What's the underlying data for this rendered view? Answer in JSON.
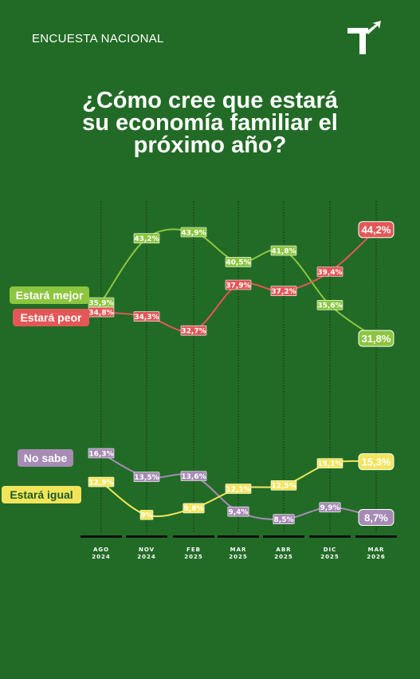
{
  "header": {
    "label": "ENCUESTA NACIONAL"
  },
  "title_lines": [
    "¿Cómo cree que estará",
    "su economía familiar el",
    "próximo año?"
  ],
  "chart_data": {
    "type": "line",
    "x": [
      "AGO 2024",
      "NOV 2024",
      "FEB 2025",
      "MAR 2025",
      "ABR 2025",
      "DIC 2025",
      "MAR 2026"
    ],
    "x_ticks": [
      [
        "AGO",
        "2024"
      ],
      [
        "NOV",
        "2024"
      ],
      [
        "FEB",
        "2025"
      ],
      [
        "MAR",
        "2025"
      ],
      [
        "ABR",
        "2025"
      ],
      [
        "DIC",
        "2025"
      ],
      [
        "MAR",
        "2026"
      ]
    ],
    "series": [
      {
        "name": "Estará mejor",
        "color": "#8cc63f",
        "values": [
          35.9,
          43.2,
          43.9,
          40.5,
          41.8,
          35.6,
          31.8
        ],
        "labels": [
          "35,9%",
          "43,2%",
          "43,9%",
          "40,5%",
          "41,8%",
          "35,6%",
          "31,8%"
        ]
      },
      {
        "name": "Estará peor",
        "color": "#e45757",
        "values": [
          34.8,
          34.3,
          32.7,
          37.9,
          37.2,
          39.4,
          44.2
        ],
        "labels": [
          "34,8%",
          "34,3%",
          "32,7%",
          "37,9%",
          "37,2%",
          "39,4%",
          "44,2%"
        ]
      },
      {
        "name": "No sabe",
        "color": "#a78bb5",
        "values": [
          16.3,
          13.5,
          13.6,
          9.4,
          8.5,
          9.9,
          8.7
        ],
        "labels": [
          "16,3%",
          "13,5%",
          "13,6%",
          "9,4%",
          "8,5%",
          "9,9%",
          "8,7%"
        ]
      },
      {
        "name": "Estará igual",
        "color": "#f2e55c",
        "values": [
          12.9,
          9.0,
          9.8,
          12.1,
          12.5,
          15.1,
          15.3
        ],
        "labels": [
          "12,9%",
          "9%",
          "9,8%",
          "12,1%",
          "12,5%",
          "15,1%",
          "15,3%"
        ]
      }
    ],
    "grid": "vertical-dotted"
  }
}
